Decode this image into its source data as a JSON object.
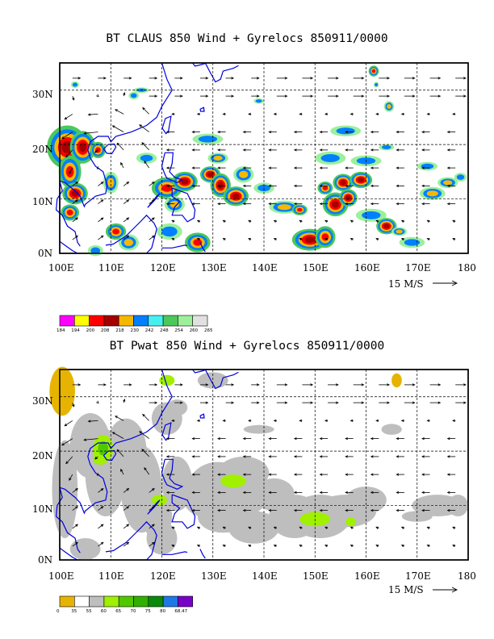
{
  "panels": [
    {
      "id": "claus",
      "title": "BT CLAUS 850 Wind + Gyrelocs 850911/0000",
      "x_ticks": [
        "100E",
        "110E",
        "120E",
        "130E",
        "140E",
        "150E",
        "160E",
        "170E",
        "180"
      ],
      "y_ticks": [
        "30N",
        "20N",
        "10N",
        "0N"
      ],
      "vector_scale_label": "15 M/S",
      "legend": {
        "colors": [
          "#ff00ff",
          "#ffff00",
          "#ff0000",
          "#a50000",
          "#f5b800",
          "#0080ff",
          "#46f0f0",
          "#4cc85a",
          "#9cf09c",
          "#e1e1e1"
        ],
        "labels": [
          "184",
          "194",
          "200",
          "208",
          "218",
          "230",
          "242",
          "248",
          "254",
          "260",
          "265"
        ]
      }
    },
    {
      "id": "pwat",
      "title": "BT Pwat 850 Wind + Gyrelocs 850911/0000",
      "x_ticks": [
        "100E",
        "110E",
        "120E",
        "130E",
        "140E",
        "150E",
        "160E",
        "170E",
        "180"
      ],
      "y_ticks": [
        "30N",
        "20N",
        "10N",
        "0N"
      ],
      "vector_scale_label": "15 M/S",
      "legend": {
        "colors": [
          "#e6b400",
          "#ffffff",
          "#bebebe",
          "#a0f000",
          "#50c800",
          "#30b000",
          "#0a8a0a",
          "#1e78e6",
          "#7800c8"
        ],
        "labels": [
          "0",
          "35",
          "55",
          "60",
          "65",
          "70",
          "75",
          "80",
          "68.47"
        ]
      }
    }
  ]
}
